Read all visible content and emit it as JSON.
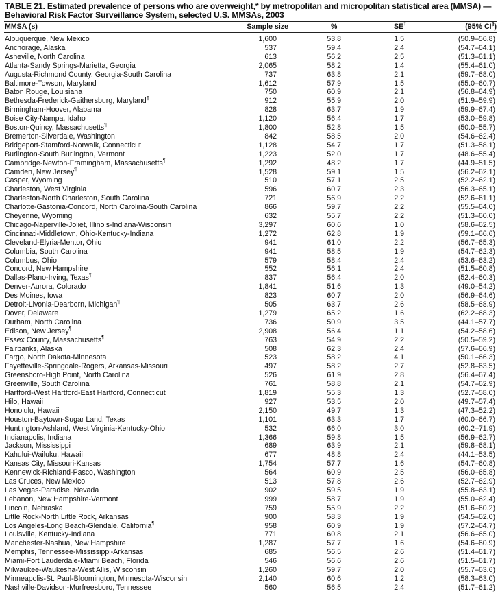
{
  "title": {
    "line1": "TABLE 21. Estimated prevalence of persons who are overweight,* by metropolitan and micropolitan statistical area (MMSA) —",
    "line2": "Behavioral Risk Factor Surveillance System, selected U.S. MMSAs, 2003"
  },
  "columns": {
    "mmsa": "MMSA (s)",
    "sample_size": "Sample size",
    "percent": "%",
    "se": "SE",
    "se_note": "†",
    "ci": "(95% CI",
    "ci_note": "§",
    "ci_close": ")"
  },
  "rows": [
    {
      "name": "Albuquerque, New Mexico",
      "n": "1,600",
      "p": "53.8",
      "se": "1.5",
      "ci": "(50.9–56.8)"
    },
    {
      "name": "Anchorage, Alaska",
      "n": "537",
      "p": "59.4",
      "se": "2.4",
      "ci": "(54.7–64.1)"
    },
    {
      "name": "Asheville, North Carolina",
      "n": "613",
      "p": "56.2",
      "se": "2.5",
      "ci": "(51.3–61.1)"
    },
    {
      "name": "Atlanta-Sandy Springs-Marietta, Georgia",
      "n": "2,065",
      "p": "58.2",
      "se": "1.4",
      "ci": "(55.4–61.0)"
    },
    {
      "name": "Augusta-Richmond County, Georgia-South Carolina",
      "n": "737",
      "p": "63.8",
      "se": "2.1",
      "ci": "(59.7–68.0)"
    },
    {
      "name": "Baltimore-Towson, Maryland",
      "n": "1,612",
      "p": "57.9",
      "se": "1.5",
      "ci": "(55.0–60.7)"
    },
    {
      "name": "Baton Rouge, Louisiana",
      "n": "750",
      "p": "60.9",
      "se": "2.1",
      "ci": "(56.8–64.9)"
    },
    {
      "name": "Bethesda-Frederick-Gaithersburg, Maryland",
      "note": "¶",
      "n": "912",
      "p": "55.9",
      "se": "2.0",
      "ci": "(51.9–59.9)"
    },
    {
      "name": "Birmingham-Hoover, Alabama",
      "n": "828",
      "p": "63.7",
      "se": "1.9",
      "ci": "(59.9–67.4)"
    },
    {
      "name": "Boise City-Nampa, Idaho",
      "n": "1,120",
      "p": "56.4",
      "se": "1.7",
      "ci": "(53.0–59.8)"
    },
    {
      "name": "Boston-Quincy, Massachusetts",
      "note": "¶",
      "n": "1,800",
      "p": "52.8",
      "se": "1.5",
      "ci": "(50.0–55.7)"
    },
    {
      "name": "Bremerton-Silverdale, Washington",
      "n": "842",
      "p": "58.5",
      "se": "2.0",
      "ci": "(54.6–62.4)"
    },
    {
      "name": "Bridgeport-Stamford-Norwalk, Connecticut",
      "n": "1,128",
      "p": "54.7",
      "se": "1.7",
      "ci": "(51.3–58.1)"
    },
    {
      "name": "Burlington-South Burlington, Vermont",
      "n": "1,223",
      "p": "52.0",
      "se": "1.7",
      "ci": "(48.6–55.4)"
    },
    {
      "name": "Cambridge-Newton-Framingham, Massachusetts",
      "note": "¶",
      "n": "1,292",
      "p": "48.2",
      "se": "1.7",
      "ci": "(44.9–51.5)"
    },
    {
      "name": "Camden, New Jersey",
      "note": "¶",
      "n": "1,528",
      "p": "59.1",
      "se": "1.5",
      "ci": "(56.2–62.1)"
    },
    {
      "name": "Casper, Wyoming",
      "n": "510",
      "p": "57.1",
      "se": "2.5",
      "ci": "(52.2–62.1)"
    },
    {
      "name": "Charleston, West Virginia",
      "n": "596",
      "p": "60.7",
      "se": "2.3",
      "ci": "(56.3–65.1)"
    },
    {
      "name": "Charleston-North Charleston, South Carolina",
      "n": "721",
      "p": "56.9",
      "se": "2.2",
      "ci": "(52.6–61.1)"
    },
    {
      "name": "Charlotte-Gastonia-Concord, North Carolina-South Carolina",
      "n": "866",
      "p": "59.7",
      "se": "2.2",
      "ci": "(55.5–64.0)"
    },
    {
      "name": "Cheyenne, Wyoming",
      "n": "632",
      "p": "55.7",
      "se": "2.2",
      "ci": "(51.3–60.0)"
    },
    {
      "name": "Chicago-Naperville-Joliet, Illinois-Indiana-Wisconsin",
      "n": "3,297",
      "p": "60.6",
      "se": "1.0",
      "ci": "(58.6–62.5)"
    },
    {
      "name": "Cincinnati-Middletown, Ohio-Kentucky-Indiana",
      "n": "1,272",
      "p": "62.8",
      "se": "1.9",
      "ci": "(59.1–66.6)"
    },
    {
      "name": "Cleveland-Elyria-Mentor, Ohio",
      "n": "941",
      "p": "61.0",
      "se": "2.2",
      "ci": "(56.7–65.3)"
    },
    {
      "name": "Columbia, South Carolina",
      "n": "941",
      "p": "58.5",
      "se": "1.9",
      "ci": "(54.7–62.3)"
    },
    {
      "name": "Columbus, Ohio",
      "n": "579",
      "p": "58.4",
      "se": "2.4",
      "ci": "(53.6–63.2)"
    },
    {
      "name": "Concord, New Hampshire",
      "n": "552",
      "p": "56.1",
      "se": "2.4",
      "ci": "(51.5–60.8)"
    },
    {
      "name": "Dallas-Plano-Irving, Texas",
      "note": "¶",
      "n": "837",
      "p": "56.4",
      "se": "2.0",
      "ci": "(52.4–60.3)"
    },
    {
      "name": "Denver-Aurora, Colorado",
      "n": "1,841",
      "p": "51.6",
      "se": "1.3",
      "ci": "(49.0–54.2)"
    },
    {
      "name": "Des Moines, Iowa",
      "n": "823",
      "p": "60.7",
      "se": "2.0",
      "ci": "(56.9–64.6)"
    },
    {
      "name": "Detroit-Livonia-Dearborn, Michigan",
      "note": "¶",
      "n": "505",
      "p": "63.7",
      "se": "2.6",
      "ci": "(58.5–68.9)"
    },
    {
      "name": "Dover, Delaware",
      "n": "1,279",
      "p": "65.2",
      "se": "1.6",
      "ci": "(62.2–68.3)"
    },
    {
      "name": "Durham, North Carolina",
      "n": "736",
      "p": "50.9",
      "se": "3.5",
      "ci": "(44.1–57.7)"
    },
    {
      "name": "Edison, New Jersey",
      "note": "¶",
      "n": "2,908",
      "p": "56.4",
      "se": "1.1",
      "ci": "(54.2–58.6)"
    },
    {
      "name": "Essex County, Massachusetts",
      "note": "¶",
      "n": "763",
      "p": "54.9",
      "se": "2.2",
      "ci": "(50.5–59.2)"
    },
    {
      "name": "Fairbanks, Alaska",
      "n": "508",
      "p": "62.3",
      "se": "2.4",
      "ci": "(57.6–66.9)"
    },
    {
      "name": "Fargo, North Dakota-Minnesota",
      "n": "523",
      "p": "58.2",
      "se": "4.1",
      "ci": "(50.1–66.3)"
    },
    {
      "name": "Fayetteville-Springdale-Rogers, Arkansas-Missouri",
      "n": "497",
      "p": "58.2",
      "se": "2.7",
      "ci": "(52.8–63.5)"
    },
    {
      "name": "Greensboro-High Point, North Carolina",
      "n": "526",
      "p": "61.9",
      "se": "2.8",
      "ci": "(56.4–67.4)"
    },
    {
      "name": "Greenville, South Carolina",
      "n": "761",
      "p": "58.8",
      "se": "2.1",
      "ci": "(54.7–62.9)"
    },
    {
      "name": "Hartford-West Hartford-East Hartford, Connecticut",
      "n": "1,819",
      "p": "55.3",
      "se": "1.3",
      "ci": "(52.7–58.0)"
    },
    {
      "name": "Hilo, Hawaii",
      "n": "927",
      "p": "53.5",
      "se": "2.0",
      "ci": "(49.7–57.4)"
    },
    {
      "name": "Honolulu, Hawaii",
      "n": "2,150",
      "p": "49.7",
      "se": "1.3",
      "ci": "(47.3–52.2)"
    },
    {
      "name": "Houston-Baytown-Sugar Land, Texas",
      "n": "1,101",
      "p": "63.3",
      "se": "1.7",
      "ci": "(60.0–66.7)"
    },
    {
      "name": "Huntington-Ashland, West Virginia-Kentucky-Ohio",
      "n": "532",
      "p": "66.0",
      "se": "3.0",
      "ci": "(60.2–71.9)"
    },
    {
      "name": "Indianapolis, Indiana",
      "n": "1,366",
      "p": "59.8",
      "se": "1.5",
      "ci": "(56.9–62.7)"
    },
    {
      "name": "Jackson, Mississippi",
      "n": "689",
      "p": "63.9",
      "se": "2.1",
      "ci": "(59.8–68.1)"
    },
    {
      "name": "Kahului-Wailuku, Hawaii",
      "n": "677",
      "p": "48.8",
      "se": "2.4",
      "ci": "(44.1–53.5)"
    },
    {
      "name": "Kansas City, Missouri-Kansas",
      "n": "1,754",
      "p": "57.7",
      "se": "1.6",
      "ci": "(54.7–60.8)"
    },
    {
      "name": "Kennewick-Richland-Pasco, Washington",
      "n": "564",
      "p": "60.9",
      "se": "2.5",
      "ci": "(56.0–65.8)"
    },
    {
      "name": "Las Cruces, New Mexico",
      "n": "513",
      "p": "57.8",
      "se": "2.6",
      "ci": "(52.7–62.9)"
    },
    {
      "name": "Las Vegas-Paradise, Nevada",
      "n": "902",
      "p": "59.5",
      "se": "1.9",
      "ci": "(55.8–63.1)"
    },
    {
      "name": "Lebanon, New Hampshire-Vermont",
      "n": "999",
      "p": "58.7",
      "se": "1.9",
      "ci": "(55.0–62.4)"
    },
    {
      "name": "Lincoln, Nebraska",
      "n": "759",
      "p": "55.9",
      "se": "2.2",
      "ci": "(51.6–60.2)"
    },
    {
      "name": "Little Rock-North Little Rock, Arkansas",
      "n": "900",
      "p": "58.3",
      "se": "1.9",
      "ci": "(54.5–62.0)"
    },
    {
      "name": "Los Angeles-Long Beach-Glendale, California",
      "note": "¶",
      "n": "958",
      "p": "60.9",
      "se": "1.9",
      "ci": "(57.2–64.7)"
    },
    {
      "name": "Louisville, Kentucky-Indiana",
      "n": "771",
      "p": "60.8",
      "se": "2.1",
      "ci": "(56.6–65.0)"
    },
    {
      "name": "Manchester-Nashua, New Hampshire",
      "n": "1,287",
      "p": "57.7",
      "se": "1.6",
      "ci": "(54.6–60.9)"
    },
    {
      "name": "Memphis, Tennessee-Mississippi-Arkansas",
      "n": "685",
      "p": "56.5",
      "se": "2.6",
      "ci": "(51.4–61.7)"
    },
    {
      "name": "Miami-Fort Lauderdale-Miami Beach, Florida",
      "n": "546",
      "p": "56.6",
      "se": "2.6",
      "ci": "(51.5–61.7)"
    },
    {
      "name": "Milwaukee-Waukesha-West Allis, Wisconsin",
      "n": "1,260",
      "p": "59.7",
      "se": "2.0",
      "ci": "(55.7–63.6)"
    },
    {
      "name": "Minneapolis-St. Paul-Bloomington, Minnesota-Wisconsin",
      "n": "2,140",
      "p": "60.6",
      "se": "1.2",
      "ci": "(58.3–63.0)"
    },
    {
      "name": "Nashville-Davidson-Murfreesboro, Tennessee",
      "n": "560",
      "p": "56.5",
      "se": "2.4",
      "ci": "(51.7–61.2)"
    }
  ]
}
